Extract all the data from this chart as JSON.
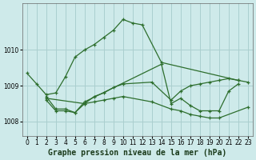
{
  "title": "Graphe pression niveau de la mer (hPa)",
  "background_color": "#ceeaea",
  "grid_color": "#aacfcf",
  "line_color": "#2d6e2d",
  "series": [
    {
      "x": [
        0,
        1,
        2,
        3,
        4,
        5,
        6,
        7,
        8,
        9,
        10,
        11,
        12,
        14,
        22,
        23
      ],
      "y": [
        1009.35,
        1009.05,
        1008.75,
        1008.8,
        1009.25,
        1009.8,
        1010.0,
        1010.15,
        1010.35,
        1010.55,
        1010.85,
        1010.75,
        1010.7,
        1009.65,
        1009.15,
        null
      ]
    },
    {
      "x": [
        2,
        3,
        4,
        5,
        6,
        7,
        8,
        9,
        10,
        13,
        15,
        16,
        17,
        18,
        19,
        20,
        23
      ],
      "y": [
        1008.6,
        1008.3,
        1008.3,
        1008.25,
        1008.5,
        1008.55,
        1008.6,
        1008.65,
        1008.7,
        1008.55,
        1008.35,
        1008.3,
        1008.2,
        1008.15,
        1008.1,
        1008.1,
        1008.4
      ]
    },
    {
      "x": [
        2,
        3,
        4,
        5,
        6,
        14,
        15,
        16,
        17,
        18,
        19,
        20,
        21,
        22
      ],
      "y": [
        1008.7,
        1008.35,
        1008.35,
        1008.25,
        1008.55,
        1009.6,
        1008.5,
        1008.65,
        1008.45,
        1008.3,
        1008.3,
        1008.3,
        1008.85,
        1009.05
      ]
    },
    {
      "x": [
        2,
        6,
        7,
        8,
        9,
        10,
        13,
        15,
        16,
        17,
        18,
        19,
        20,
        21,
        22,
        23
      ],
      "y": [
        1008.65,
        1008.5,
        1008.7,
        1008.8,
        1008.95,
        1009.05,
        1009.1,
        1008.6,
        1008.85,
        1009.0,
        1009.05,
        1009.1,
        1009.15,
        1009.2,
        1009.15,
        1009.1
      ]
    }
  ],
  "ylim": [
    1007.6,
    1011.3
  ],
  "yticks": [
    1008,
    1009,
    1010
  ],
  "xlim": [
    -0.5,
    23.5
  ],
  "xticks": [
    0,
    1,
    2,
    3,
    4,
    5,
    6,
    7,
    8,
    9,
    10,
    11,
    12,
    13,
    14,
    15,
    16,
    17,
    18,
    19,
    20,
    21,
    22,
    23
  ],
  "tick_fontsize": 5.5,
  "label_fontsize": 7,
  "marker": "+"
}
